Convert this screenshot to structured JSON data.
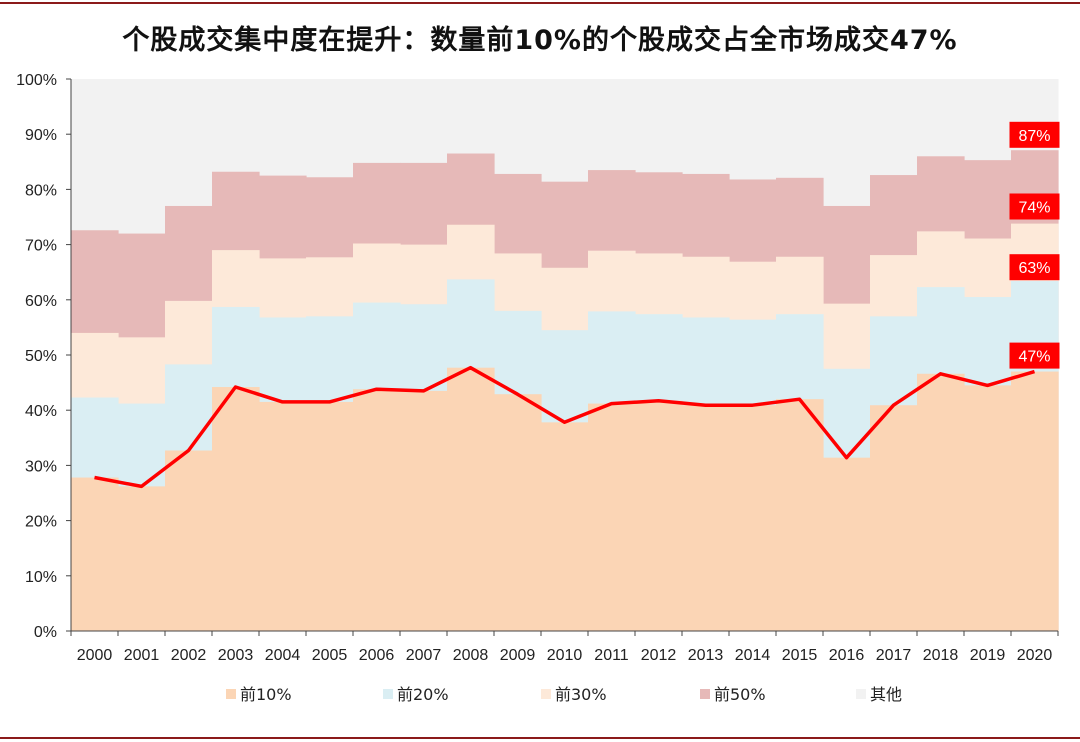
{
  "header": {
    "title": "个股成交集中度在提升：数量前10%的个股成交占全市场成交47%"
  },
  "colors": {
    "top10": "#fbd5b5",
    "top20": "#daeef3",
    "top30": "#fde9d9",
    "top50": "#e6b9b8",
    "other": "#f2f2f2",
    "line": "#ff0000",
    "callout_bg": "#ff0000",
    "rule": "#8b1a1a"
  },
  "chart_data": {
    "type": "area",
    "categories": [
      "2000",
      "2001",
      "2002",
      "2003",
      "2004",
      "2005",
      "2006",
      "2007",
      "2008",
      "2009",
      "2010",
      "2011",
      "2012",
      "2013",
      "2014",
      "2015",
      "2016",
      "2017",
      "2018",
      "2019",
      "2020"
    ],
    "ylim": [
      0,
      100
    ],
    "yticks": [
      "0%",
      "10%",
      "20%",
      "30%",
      "40%",
      "50%",
      "60%",
      "70%",
      "80%",
      "90%",
      "100%"
    ],
    "grid": false,
    "legend_position": "bottom",
    "series": [
      {
        "name": "前10%",
        "key": "top10",
        "values": [
          27.8,
          26.2,
          32.7,
          44.2,
          41.5,
          41.5,
          43.8,
          43.5,
          47.7,
          42.9,
          37.8,
          41.2,
          41.7,
          40.9,
          40.9,
          42.0,
          31.4,
          40.9,
          46.6,
          44.5,
          47.0
        ]
      },
      {
        "name": "前20%",
        "key": "top20",
        "values": [
          42.3,
          41.2,
          48.3,
          58.7,
          56.8,
          57.0,
          59.5,
          59.2,
          63.7,
          58.0,
          54.5,
          57.9,
          57.4,
          56.8,
          56.4,
          57.4,
          47.5,
          57.0,
          62.3,
          60.5,
          63.4
        ]
      },
      {
        "name": "前30%",
        "key": "top30",
        "values": [
          54.0,
          53.2,
          59.8,
          69.0,
          67.5,
          67.7,
          70.2,
          70.0,
          73.6,
          68.4,
          65.8,
          68.9,
          68.4,
          67.8,
          66.9,
          67.8,
          59.3,
          68.1,
          72.4,
          71.1,
          73.8
        ]
      },
      {
        "name": "前50%",
        "key": "top50",
        "values": [
          72.6,
          72.0,
          77.0,
          83.2,
          82.5,
          82.2,
          84.8,
          84.8,
          86.5,
          82.8,
          81.4,
          83.5,
          83.1,
          82.8,
          81.8,
          82.1,
          77.0,
          82.6,
          86.0,
          85.3,
          87.1
        ]
      },
      {
        "name": "其他",
        "key": "other",
        "values": [
          100,
          100,
          100,
          100,
          100,
          100,
          100,
          100,
          100,
          100,
          100,
          100,
          100,
          100,
          100,
          100,
          100,
          100,
          100,
          100,
          100
        ]
      }
    ],
    "line": {
      "series": "前10%",
      "values": [
        27.8,
        26.2,
        32.7,
        44.2,
        41.5,
        41.5,
        43.8,
        43.5,
        47.7,
        42.9,
        37.8,
        41.2,
        41.7,
        40.9,
        40.9,
        42.0,
        31.4,
        40.9,
        46.6,
        44.5,
        47.0
      ]
    },
    "annotations": [
      {
        "text": "87%",
        "value": 87
      },
      {
        "text": "74%",
        "value": 74
      },
      {
        "text": "63%",
        "value": 63
      },
      {
        "text": "47%",
        "value": 47
      }
    ]
  }
}
